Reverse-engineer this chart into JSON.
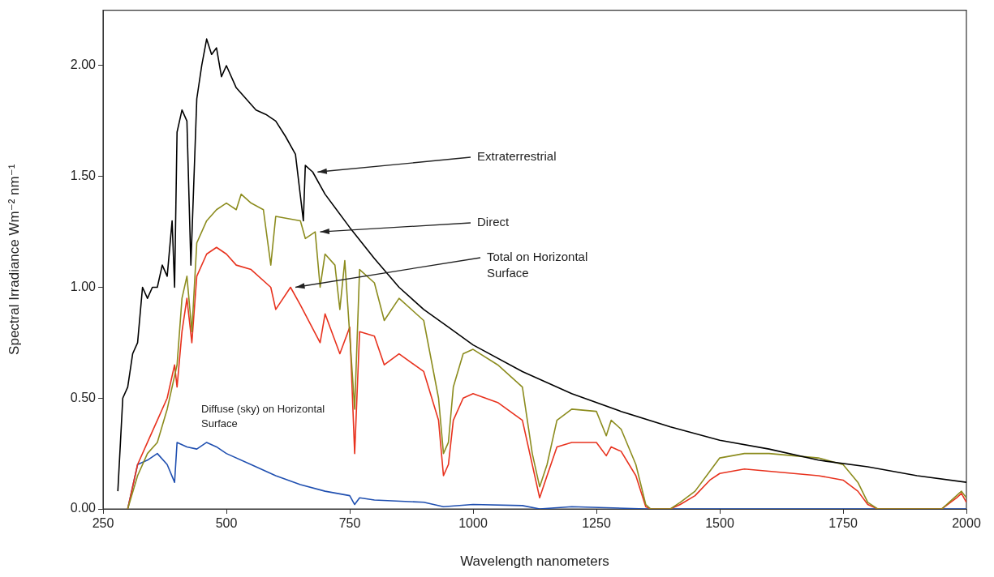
{
  "chart_data": {
    "type": "line",
    "xlabel": "Wavelength nanometers",
    "ylabel": "Spectral Irradiance Wm⁻² nm⁻¹",
    "xlim": [
      250,
      2000
    ],
    "xticks": [
      250,
      500,
      750,
      1000,
      1250,
      1500,
      1750,
      2000
    ],
    "ylim": [
      0,
      2.25
    ],
    "yticks": [
      {
        "value": 0,
        "label": "0.00"
      },
      {
        "value": 0.5,
        "label": "0.50"
      },
      {
        "value": 1,
        "label": "1.00"
      },
      {
        "value": 1.5,
        "label": "1.50"
      },
      {
        "value": 2,
        "label": "2.00"
      }
    ],
    "annotations": [
      {
        "text": "Extraterrestrial",
        "x": 675,
        "y": 1.52
      },
      {
        "text": "Direct",
        "x": 680,
        "y": 1.25
      },
      {
        "text": "Total on Horizontal Surface",
        "x": 630,
        "y": 1.0
      },
      "Diffuse (sky) on Horizontal Surface"
    ],
    "grid": false,
    "legend": false,
    "marker": "none",
    "line_style": "solid",
    "series": [
      {
        "color": "#000000",
        "x": [
          280,
          290,
          300,
          310,
          320,
          330,
          340,
          350,
          360,
          370,
          380,
          390,
          395,
          400,
          410,
          420,
          428,
          440,
          450,
          460,
          470,
          480,
          490,
          500,
          520,
          540,
          560,
          580,
          600,
          620,
          640,
          656,
          660,
          675,
          700,
          750,
          800,
          850,
          900,
          950,
          1000,
          1100,
          1200,
          1300,
          1400,
          1500,
          1600,
          1700,
          1800,
          1900,
          2000
        ],
        "values": [
          0.08,
          0.5,
          0.55,
          0.7,
          0.75,
          1.0,
          0.95,
          1.0,
          1.0,
          1.1,
          1.05,
          1.3,
          1.0,
          1.7,
          1.8,
          1.75,
          1.1,
          1.85,
          2.0,
          2.12,
          2.05,
          2.08,
          1.95,
          2.0,
          1.9,
          1.85,
          1.8,
          1.78,
          1.75,
          1.68,
          1.6,
          1.3,
          1.55,
          1.52,
          1.42,
          1.27,
          1.13,
          1.0,
          0.9,
          0.82,
          0.74,
          0.62,
          0.52,
          0.44,
          0.37,
          0.31,
          0.27,
          0.22,
          0.19,
          0.15,
          0.12
        ]
      },
      {
        "color": "#8c8c1e",
        "x": [
          300,
          320,
          340,
          360,
          380,
          395,
          400,
          410,
          420,
          430,
          440,
          460,
          480,
          500,
          520,
          530,
          550,
          575,
          590,
          600,
          650,
          660,
          680,
          690,
          700,
          720,
          730,
          740,
          760,
          770,
          800,
          820,
          850,
          900,
          930,
          940,
          950,
          960,
          980,
          1000,
          1050,
          1100,
          1120,
          1135,
          1150,
          1170,
          1200,
          1250,
          1270,
          1280,
          1300,
          1330,
          1350,
          1360,
          1400,
          1420,
          1450,
          1480,
          1500,
          1550,
          1600,
          1650,
          1700,
          1750,
          1780,
          1800,
          1820,
          1950,
          1980,
          1990,
          2000
        ],
        "values": [
          0,
          0.15,
          0.25,
          0.3,
          0.45,
          0.6,
          0.65,
          0.95,
          1.05,
          0.8,
          1.2,
          1.3,
          1.35,
          1.38,
          1.35,
          1.42,
          1.38,
          1.35,
          1.1,
          1.32,
          1.3,
          1.22,
          1.25,
          1.0,
          1.15,
          1.1,
          0.9,
          1.12,
          0.45,
          1.08,
          1.02,
          0.85,
          0.95,
          0.85,
          0.5,
          0.25,
          0.3,
          0.55,
          0.7,
          0.72,
          0.65,
          0.55,
          0.25,
          0.1,
          0.2,
          0.4,
          0.45,
          0.44,
          0.33,
          0.4,
          0.36,
          0.2,
          0.02,
          0,
          0,
          0.03,
          0.08,
          0.17,
          0.23,
          0.25,
          0.25,
          0.24,
          0.23,
          0.2,
          0.12,
          0.03,
          0,
          0,
          0.06,
          0.08,
          0.05
        ]
      },
      {
        "color": "#e8321e",
        "x": [
          300,
          320,
          340,
          360,
          380,
          395,
          400,
          410,
          420,
          430,
          440,
          460,
          480,
          500,
          520,
          550,
          590,
          600,
          630,
          650,
          690,
          700,
          730,
          750,
          760,
          770,
          800,
          820,
          850,
          900,
          930,
          940,
          950,
          960,
          980,
          1000,
          1050,
          1100,
          1120,
          1135,
          1150,
          1170,
          1200,
          1250,
          1270,
          1280,
          1300,
          1330,
          1350,
          1360,
          1400,
          1420,
          1450,
          1480,
          1500,
          1550,
          1600,
          1650,
          1700,
          1750,
          1780,
          1800,
          1820,
          1950,
          1980,
          1990,
          2000
        ],
        "values": [
          0,
          0.2,
          0.3,
          0.4,
          0.5,
          0.65,
          0.55,
          0.8,
          0.95,
          0.75,
          1.05,
          1.15,
          1.18,
          1.15,
          1.1,
          1.08,
          1.0,
          0.9,
          1.0,
          0.92,
          0.75,
          0.88,
          0.7,
          0.82,
          0.25,
          0.8,
          0.78,
          0.65,
          0.7,
          0.62,
          0.4,
          0.15,
          0.2,
          0.4,
          0.5,
          0.52,
          0.48,
          0.4,
          0.2,
          0.05,
          0.15,
          0.28,
          0.3,
          0.3,
          0.24,
          0.28,
          0.26,
          0.15,
          0.01,
          0,
          0,
          0.02,
          0.06,
          0.13,
          0.16,
          0.18,
          0.17,
          0.16,
          0.15,
          0.13,
          0.08,
          0.02,
          0,
          0,
          0.05,
          0.07,
          0.03
        ]
      },
      {
        "color": "#1f4fb0",
        "x": [
          300,
          320,
          340,
          360,
          380,
          395,
          400,
          420,
          440,
          460,
          480,
          500,
          550,
          600,
          650,
          700,
          750,
          760,
          770,
          800,
          900,
          940,
          1000,
          1100,
          1135,
          1200,
          1350,
          2000
        ],
        "values": [
          0,
          0.2,
          0.22,
          0.25,
          0.2,
          0.12,
          0.3,
          0.28,
          0.27,
          0.3,
          0.28,
          0.25,
          0.2,
          0.15,
          0.11,
          0.08,
          0.06,
          0.02,
          0.05,
          0.04,
          0.03,
          0.01,
          0.02,
          0.015,
          0,
          0.01,
          0,
          0
        ]
      }
    ]
  }
}
